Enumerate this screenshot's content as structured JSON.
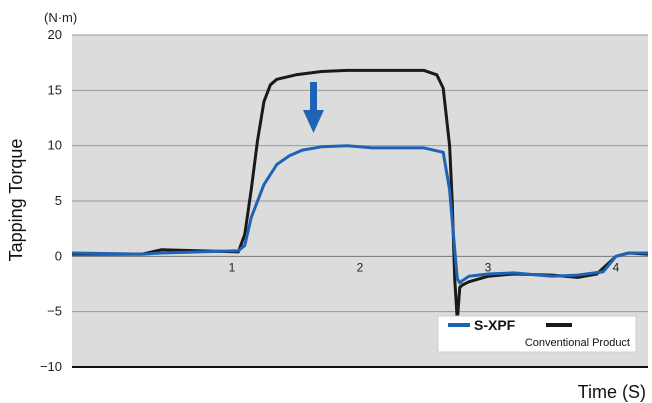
{
  "chart_data": {
    "type": "line",
    "title": "",
    "unit_label": "(N·m)",
    "ylabel": "Tapping Torque",
    "xlabel": "Time (S)",
    "xlim": [
      -0.25,
      4.25
    ],
    "ylim": [
      -10,
      20
    ],
    "yticks": [
      20,
      15,
      10,
      5,
      0,
      -5,
      -10
    ],
    "ytick_labels": [
      "20",
      "15",
      "10",
      "5",
      "0",
      "−5",
      "−10"
    ],
    "xticks": [
      1,
      2,
      3,
      4
    ],
    "xtick_labels": [
      "1",
      "2",
      "3",
      "4"
    ],
    "grid": true,
    "legend_position": "bottom-right",
    "annotation": "down-arrow",
    "series": [
      {
        "name": "S-XPF",
        "color": "#1f63b5",
        "x": [
          -0.25,
          0.3,
          0.45,
          1.05,
          1.1,
          1.15,
          1.25,
          1.35,
          1.45,
          1.55,
          1.7,
          1.9,
          2.1,
          2.3,
          2.5,
          2.65,
          2.7,
          2.73,
          2.76,
          2.78,
          2.8,
          2.85,
          3.0,
          3.2,
          3.5,
          3.7,
          3.9,
          4.0,
          4.1,
          4.25
        ],
        "y": [
          0.3,
          0.2,
          0.3,
          0.5,
          1.0,
          3.5,
          6.5,
          8.3,
          9.1,
          9.6,
          9.9,
          10.0,
          9.8,
          9.8,
          9.8,
          9.4,
          6.0,
          2.0,
          -2.0,
          -2.4,
          -2.2,
          -1.8,
          -1.6,
          -1.5,
          -1.8,
          -1.7,
          -1.4,
          0.0,
          0.3,
          0.3
        ]
      },
      {
        "name": "Conventional Product",
        "color": "#1a1a1a",
        "x": [
          -0.25,
          0.3,
          0.45,
          1.05,
          1.1,
          1.15,
          1.2,
          1.25,
          1.3,
          1.35,
          1.5,
          1.7,
          1.9,
          2.1,
          2.3,
          2.5,
          2.6,
          2.65,
          2.7,
          2.72,
          2.74,
          2.76,
          2.78,
          2.8,
          2.85,
          3.0,
          3.2,
          3.5,
          3.7,
          3.85,
          4.0,
          4.1,
          4.25
        ],
        "y": [
          0.2,
          0.2,
          0.6,
          0.4,
          2.0,
          6.0,
          10.5,
          14.0,
          15.5,
          16.0,
          16.4,
          16.7,
          16.8,
          16.8,
          16.8,
          16.8,
          16.4,
          15.2,
          10.0,
          5.0,
          -2.0,
          -5.8,
          -2.8,
          -2.6,
          -2.3,
          -1.8,
          -1.6,
          -1.7,
          -1.9,
          -1.6,
          0.0,
          0.3,
          0.2
        ]
      }
    ]
  },
  "legend": {
    "primary_label": "S-XPF",
    "secondary_label": "Conventional Product"
  }
}
